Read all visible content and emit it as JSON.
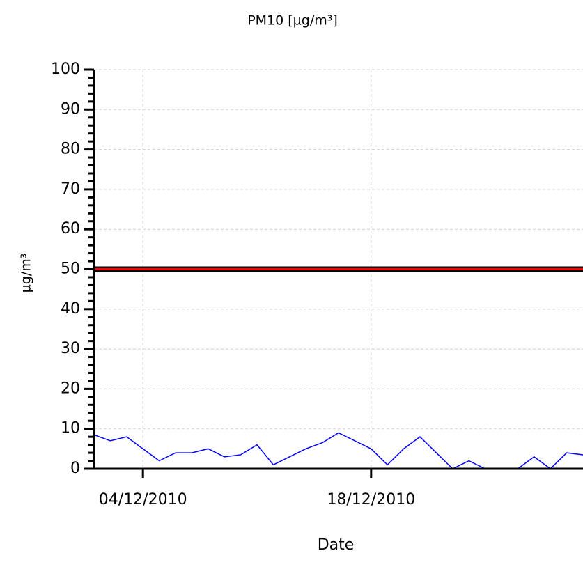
{
  "chart_data": {
    "type": "line",
    "title": "PM10 [µg/m³]",
    "x_label": "Date",
    "y_label": "µg/m³",
    "x": [
      "2010-12-01",
      "2010-12-02",
      "2010-12-03",
      "2010-12-04",
      "2010-12-05",
      "2010-12-06",
      "2010-12-07",
      "2010-12-08",
      "2010-12-09",
      "2010-12-10",
      "2010-12-11",
      "2010-12-12",
      "2010-12-13",
      "2010-12-14",
      "2010-12-15",
      "2010-12-16",
      "2010-12-17",
      "2010-12-18",
      "2010-12-19",
      "2010-12-20",
      "2010-12-21",
      "2010-12-22",
      "2010-12-23",
      "2010-12-24",
      "2010-12-25",
      "2010-12-26",
      "2010-12-27",
      "2010-12-28",
      "2010-12-29",
      "2010-12-30",
      "2010-12-31"
    ],
    "series": [
      {
        "name": "PM10",
        "color": "#0000ff",
        "values": [
          8.5,
          7,
          8,
          5,
          2,
          4,
          4,
          5,
          3,
          3.5,
          6,
          1,
          3,
          5,
          6.5,
          9,
          7,
          5,
          1,
          5,
          8,
          4,
          0,
          2,
          0,
          0,
          0,
          3,
          0,
          4,
          3.5
        ]
      }
    ],
    "threshold": {
      "value": 50,
      "color": "#ff0000"
    },
    "xlim": [
      "2010-12-01",
      "2010-12-31"
    ],
    "xticks": [
      {
        "value": "2010-12-04",
        "label": "04/12/2010"
      },
      {
        "value": "2010-12-18",
        "label": "18/12/2010"
      }
    ],
    "ylim": [
      0,
      100
    ],
    "yticks": [
      0,
      10,
      20,
      30,
      40,
      50,
      60,
      70,
      80,
      90,
      100
    ],
    "grid": true
  }
}
